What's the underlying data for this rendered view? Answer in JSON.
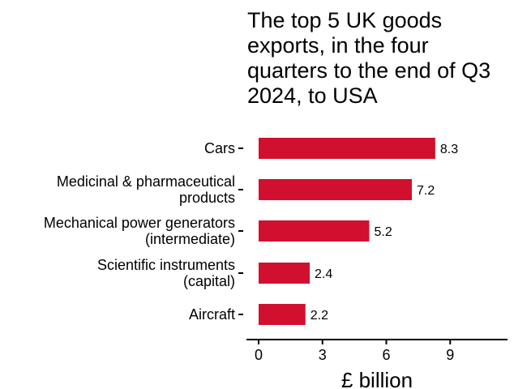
{
  "chart_data": {
    "type": "bar",
    "orientation": "horizontal",
    "title": "The top 5 UK goods exports, in the four quarters to the end of Q3 2024, to USA",
    "xlabel": "£ billion",
    "ylabel": "",
    "categories": [
      [
        "Cars"
      ],
      [
        "Medicinal & pharmaceutical",
        "products"
      ],
      [
        "Mechanical power generators",
        "(intermediate)"
      ],
      [
        "Scientific instruments",
        "(capital)"
      ],
      [
        "Aircraft"
      ]
    ],
    "values": [
      8.3,
      7.2,
      5.2,
      2.4,
      2.2
    ],
    "data_labels": [
      "8.3",
      "7.2",
      "5.2",
      "2.4",
      "2.2"
    ],
    "xticks": [
      0,
      3,
      6,
      9
    ],
    "xlim": [
      -0.5,
      11.7
    ],
    "grid": false,
    "legend": "none",
    "colors": {
      "bar": "#d0102e",
      "axis": "#000000",
      "text": "#000000"
    }
  }
}
